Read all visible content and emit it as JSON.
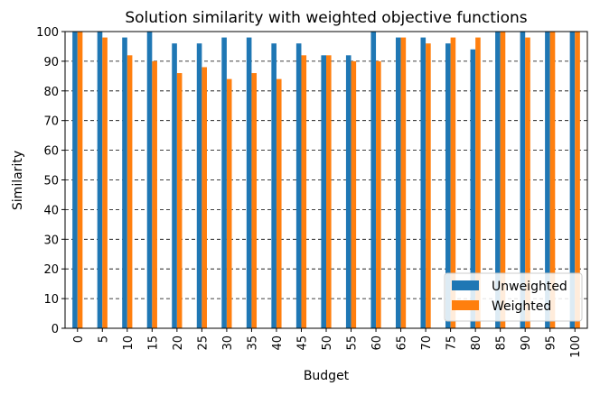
{
  "chart_data": {
    "type": "bar",
    "title": "Solution similarity with weighted objective functions",
    "xlabel": "Budget",
    "ylabel": "Similarity",
    "ylim": [
      0,
      100
    ],
    "yticks": [
      0,
      10,
      20,
      30,
      40,
      50,
      60,
      70,
      80,
      90,
      100
    ],
    "grid": "horizontal dashed",
    "legend_position": "bottom-right",
    "categories": [
      "0",
      "5",
      "10",
      "15",
      "20",
      "25",
      "30",
      "35",
      "40",
      "45",
      "50",
      "55",
      "60",
      "65",
      "70",
      "75",
      "80",
      "85",
      "90",
      "95",
      "100"
    ],
    "series": [
      {
        "name": "Unweighted",
        "color": "#1f77b4",
        "values": [
          100,
          100,
          98,
          100,
          96,
          96,
          98,
          98,
          96,
          96,
          92,
          92,
          100,
          98,
          98,
          96,
          94,
          100,
          100,
          100,
          100
        ]
      },
      {
        "name": "Weighted",
        "color": "#ff7f0e",
        "values": [
          100,
          98,
          92,
          90,
          86,
          88,
          84,
          86,
          84,
          92,
          92,
          90,
          90,
          98,
          96,
          98,
          98,
          100,
          98,
          100,
          100
        ]
      }
    ]
  }
}
